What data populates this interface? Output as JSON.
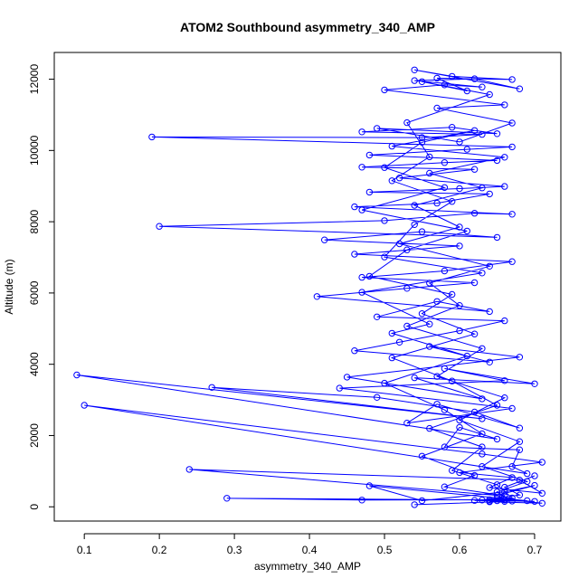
{
  "chart_data": {
    "type": "line",
    "title": "ATOM2 Southbound asymmetry_340_AMP",
    "xlabel": "asymmetry_340_AMP",
    "ylabel": "Altitude (m)",
    "xlim": [
      0.06,
      0.735
    ],
    "ylim": [
      -400,
      12750
    ],
    "x_ticks": [
      0.1,
      0.2,
      0.3,
      0.4,
      0.5,
      0.6,
      0.7
    ],
    "x_tick_labels": [
      "0.1",
      "0.2",
      "0.3",
      "0.4",
      "0.5",
      "0.6",
      "0.7"
    ],
    "y_ticks": [
      0,
      2000,
      4000,
      6000,
      8000,
      10000,
      12000
    ],
    "y_tick_labels": [
      "0",
      "2000",
      "4000",
      "6000",
      "8000",
      "10000",
      "12000"
    ],
    "grid": false,
    "series_color": "#0000ff",
    "series": [
      {
        "marker": "open-circle",
        "points": [
          [
            0.54,
            60
          ],
          [
            0.66,
            150
          ],
          [
            0.64,
            160
          ],
          [
            0.65,
            170
          ],
          [
            0.62,
            180
          ],
          [
            0.7,
            150
          ],
          [
            0.66,
            190
          ],
          [
            0.29,
            240
          ],
          [
            0.47,
            190
          ],
          [
            0.66,
            200
          ],
          [
            0.64,
            140
          ],
          [
            0.71,
            100
          ],
          [
            0.65,
            230
          ],
          [
            0.69,
            170
          ],
          [
            0.48,
            590
          ],
          [
            0.55,
            170
          ],
          [
            0.66,
            420
          ],
          [
            0.7,
            600
          ],
          [
            0.65,
            320
          ],
          [
            0.24,
            1050
          ],
          [
            0.68,
            750
          ],
          [
            0.71,
            380
          ],
          [
            0.64,
            540
          ],
          [
            0.67,
            820
          ],
          [
            0.6,
            960
          ],
          [
            0.71,
            1250
          ],
          [
            0.63,
            1480
          ],
          [
            0.1,
            2850
          ],
          [
            0.69,
            930
          ],
          [
            0.67,
            1130
          ],
          [
            0.68,
            1600
          ],
          [
            0.58,
            1680
          ],
          [
            0.6,
            2230
          ],
          [
            0.65,
            1900
          ],
          [
            0.09,
            3700
          ],
          [
            0.63,
            2470
          ],
          [
            0.27,
            3350
          ],
          [
            0.49,
            3070
          ],
          [
            0.62,
            2660
          ],
          [
            0.68,
            2210
          ],
          [
            0.57,
            2880
          ],
          [
            0.53,
            2350
          ],
          [
            0.67,
            2760
          ],
          [
            0.44,
            3330
          ],
          [
            0.66,
            3540
          ],
          [
            0.58,
            3880
          ],
          [
            0.7,
            3450
          ],
          [
            0.54,
            3620
          ],
          [
            0.63,
            3030
          ],
          [
            0.45,
            3640
          ],
          [
            0.68,
            4200
          ],
          [
            0.56,
            4500
          ],
          [
            0.64,
            4060
          ],
          [
            0.46,
            4380
          ],
          [
            0.52,
            4620
          ],
          [
            0.6,
            4940
          ],
          [
            0.66,
            5220
          ],
          [
            0.49,
            5330
          ],
          [
            0.57,
            5760
          ],
          [
            0.64,
            5480
          ],
          [
            0.41,
            5900
          ],
          [
            0.53,
            6130
          ],
          [
            0.62,
            6290
          ],
          [
            0.47,
            6440
          ],
          [
            0.58,
            6620
          ],
          [
            0.67,
            6880
          ],
          [
            0.46,
            7090
          ],
          [
            0.6,
            7320
          ],
          [
            0.42,
            7490
          ],
          [
            0.55,
            7720
          ],
          [
            0.65,
            7560
          ],
          [
            0.2,
            7870
          ],
          [
            0.5,
            8030
          ],
          [
            0.62,
            8240
          ],
          [
            0.67,
            8210
          ],
          [
            0.46,
            8420
          ],
          [
            0.57,
            8520
          ],
          [
            0.64,
            8780
          ],
          [
            0.48,
            8830
          ],
          [
            0.6,
            8930
          ],
          [
            0.66,
            8990
          ],
          [
            0.52,
            9230
          ],
          [
            0.62,
            9470
          ],
          [
            0.47,
            9530
          ],
          [
            0.58,
            9660
          ],
          [
            0.65,
            9720
          ],
          [
            0.48,
            9870
          ],
          [
            0.61,
            10030
          ],
          [
            0.67,
            10100
          ],
          [
            0.19,
            10380
          ],
          [
            0.55,
            10360
          ],
          [
            0.63,
            10450
          ],
          [
            0.47,
            10520
          ],
          [
            0.59,
            10650
          ],
          [
            0.65,
            10470
          ],
          [
            0.49,
            10620
          ],
          [
            0.6,
            10240
          ],
          [
            0.67,
            10770
          ],
          [
            0.57,
            11190
          ],
          [
            0.66,
            11280
          ],
          [
            0.5,
            11700
          ],
          [
            0.58,
            11840
          ],
          [
            0.63,
            11780
          ],
          [
            0.54,
            11960
          ],
          [
            0.62,
            12010
          ],
          [
            0.68,
            11730
          ],
          [
            0.54,
            12260
          ],
          [
            0.59,
            12080
          ],
          [
            0.67,
            11990
          ],
          [
            0.57,
            12030
          ],
          [
            0.61,
            11670
          ],
          [
            0.55,
            11930
          ],
          [
            0.64,
            11570
          ],
          [
            0.53,
            10780
          ],
          [
            0.56,
            9820
          ],
          [
            0.51,
            9150
          ],
          [
            0.59,
            8570
          ],
          [
            0.54,
            7920
          ],
          [
            0.5,
            7010
          ],
          [
            0.63,
            6560
          ],
          [
            0.47,
            6020
          ],
          [
            0.56,
            5130
          ],
          [
            0.51,
            4870
          ],
          [
            0.61,
            4230
          ],
          [
            0.5,
            3470
          ],
          [
            0.58,
            2720
          ],
          [
            0.63,
            2050
          ],
          [
            0.55,
            1420
          ],
          [
            0.62,
            880
          ],
          [
            0.58,
            560
          ],
          [
            0.66,
            310
          ],
          [
            0.64,
            200
          ],
          [
            0.67,
            160
          ],
          [
            0.65,
            420
          ],
          [
            0.69,
            710
          ],
          [
            0.63,
            1130
          ],
          [
            0.68,
            1830
          ],
          [
            0.6,
            2430
          ],
          [
            0.66,
            3060
          ],
          [
            0.57,
            3660
          ],
          [
            0.63,
            4440
          ],
          [
            0.53,
            5070
          ],
          [
            0.6,
            5650
          ],
          [
            0.56,
            6280
          ],
          [
            0.64,
            6750
          ],
          [
            0.52,
            7380
          ],
          [
            0.6,
            7850
          ],
          [
            0.54,
            8460
          ],
          [
            0.63,
            8950
          ],
          [
            0.56,
            9360
          ],
          [
            0.66,
            9810
          ],
          [
            0.51,
            10120
          ],
          [
            0.62,
            10560
          ],
          [
            0.55,
            10230
          ],
          [
            0.5,
            9520
          ],
          [
            0.58,
            8960
          ],
          [
            0.47,
            8330
          ],
          [
            0.61,
            7740
          ],
          [
            0.53,
            7210
          ],
          [
            0.48,
            6470
          ],
          [
            0.59,
            5960
          ],
          [
            0.55,
            5420
          ],
          [
            0.62,
            4850
          ],
          [
            0.51,
            4180
          ],
          [
            0.59,
            3530
          ],
          [
            0.65,
            2850
          ],
          [
            0.56,
            2200
          ],
          [
            0.63,
            1680
          ],
          [
            0.59,
            1020
          ],
          [
            0.65,
            620
          ],
          [
            0.67,
            250
          ],
          [
            0.63,
            190
          ],
          [
            0.68,
            330
          ],
          [
            0.66,
            550
          ],
          [
            0.7,
            870
          ]
        ]
      }
    ]
  }
}
